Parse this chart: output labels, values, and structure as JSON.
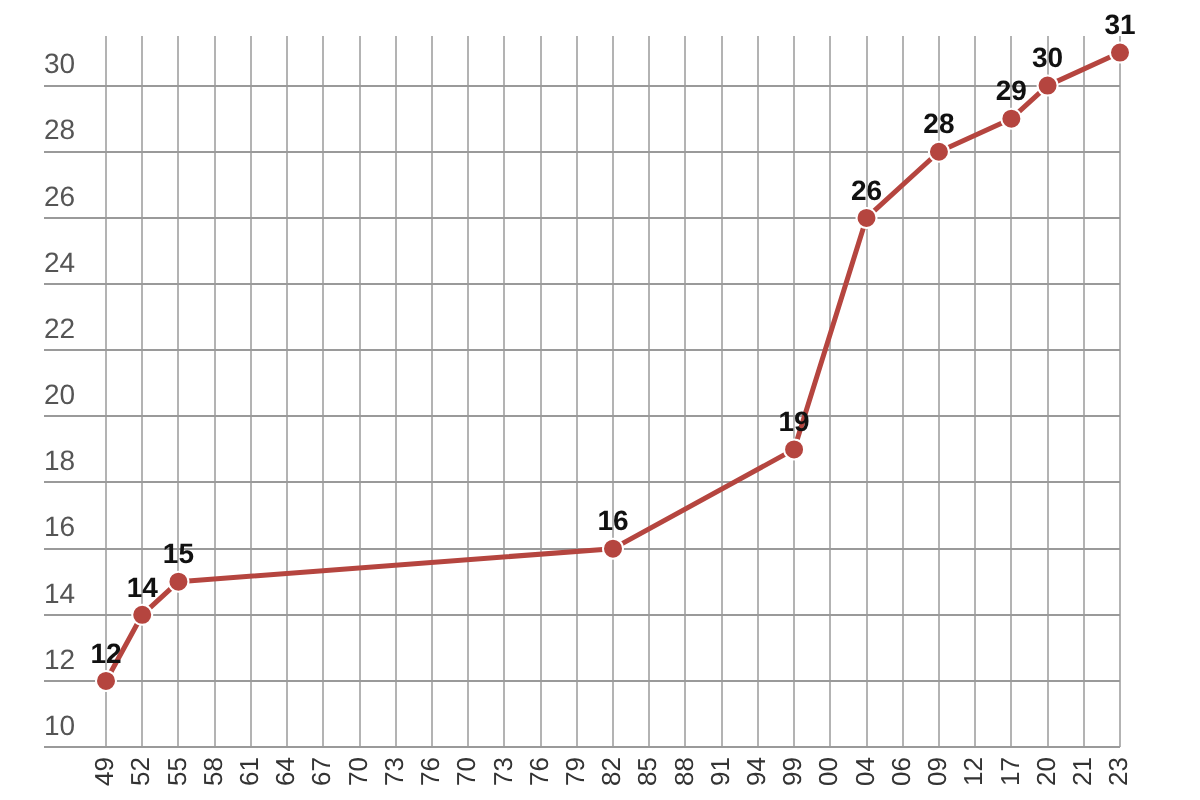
{
  "chart_data": {
    "type": "line",
    "categories": [
      "49",
      "52",
      "55",
      "58",
      "61",
      "64",
      "67",
      "70",
      "73",
      "76",
      "70",
      "73",
      "76",
      "79",
      "82",
      "85",
      "88",
      "91",
      "94",
      "99",
      "00",
      "04",
      "06",
      "09",
      "12",
      "17",
      "20",
      "21",
      "23"
    ],
    "values": [
      12,
      14,
      15,
      null,
      null,
      null,
      null,
      null,
      null,
      null,
      null,
      null,
      null,
      null,
      16,
      null,
      null,
      null,
      null,
      19,
      null,
      26,
      null,
      28,
      null,
      29,
      30,
      null,
      31
    ],
    "color": "#b5453f",
    "ylim": [
      10,
      31.5
    ],
    "yticks": [
      10,
      12,
      14,
      16,
      18,
      20,
      22,
      24,
      26,
      28,
      30
    ],
    "grid": true,
    "legend": false,
    "marker": "circle",
    "line_style": "solid",
    "data_labels": true
  }
}
